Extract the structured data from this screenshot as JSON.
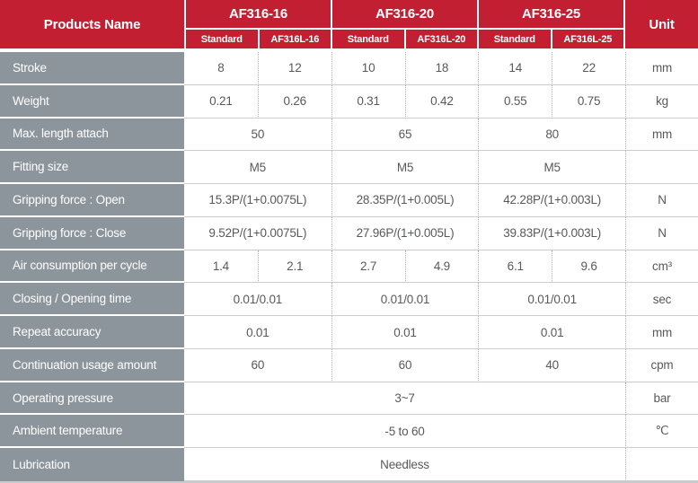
{
  "colors": {
    "red": "#C22032",
    "gray": "#8C959C",
    "text": "#58595B"
  },
  "header": {
    "products_name": "Products Name",
    "unit": "Unit",
    "groups": [
      {
        "name": "AF316-16",
        "sub": [
          "Standard",
          "AF316L-16"
        ]
      },
      {
        "name": "AF316-20",
        "sub": [
          "Standard",
          "AF316L-20"
        ]
      },
      {
        "name": "AF316-25",
        "sub": [
          "Standard",
          "AF316L-25"
        ]
      }
    ]
  },
  "rows": [
    {
      "label": "Stroke",
      "values": [
        "8",
        "12",
        "10",
        "18",
        "14",
        "22"
      ],
      "unit": "mm"
    },
    {
      "label": "Weight",
      "values": [
        "0.21",
        "0.26",
        "0.31",
        "0.42",
        "0.55",
        "0.75"
      ],
      "unit": "kg"
    },
    {
      "label": "Max. length attach",
      "values": [
        "50",
        "65",
        "80"
      ],
      "unit": "mm"
    },
    {
      "label": "Fitting size",
      "values": [
        "M5",
        "M5",
        "M5"
      ],
      "unit": ""
    },
    {
      "label": "Gripping force : Open",
      "values": [
        "15.3P/(1+0.0075L)",
        "28.35P/(1+0.005L)",
        "42.28P/(1+0.003L)"
      ],
      "unit": "N"
    },
    {
      "label": "Gripping force : Close",
      "values": [
        "9.52P/(1+0.0075L)",
        "27.96P/(1+0.005L)",
        "39.83P/(1+0.003L)"
      ],
      "unit": "N"
    },
    {
      "label": "Air consumption per cycle",
      "values": [
        "1.4",
        "2.1",
        "2.7",
        "4.9",
        "6.1",
        "9.6"
      ],
      "unit": "cm³"
    },
    {
      "label": "Closing / Opening time",
      "values": [
        "0.01/0.01",
        "0.01/0.01",
        "0.01/0.01"
      ],
      "unit": "sec"
    },
    {
      "label": "Repeat accuracy",
      "values": [
        "0.01",
        "0.01",
        "0.01"
      ],
      "unit": "mm"
    },
    {
      "label": "Continuation usage amount",
      "values": [
        "60",
        "60",
        "40"
      ],
      "unit": "cpm"
    },
    {
      "label": "Operating pressure",
      "values": [
        "3~7"
      ],
      "unit": "bar"
    },
    {
      "label": "Ambient temperature",
      "values": [
        "-5 to 60"
      ],
      "unit": "℃"
    },
    {
      "label": "Lubrication",
      "values": [
        "Needless"
      ],
      "unit": ""
    }
  ]
}
